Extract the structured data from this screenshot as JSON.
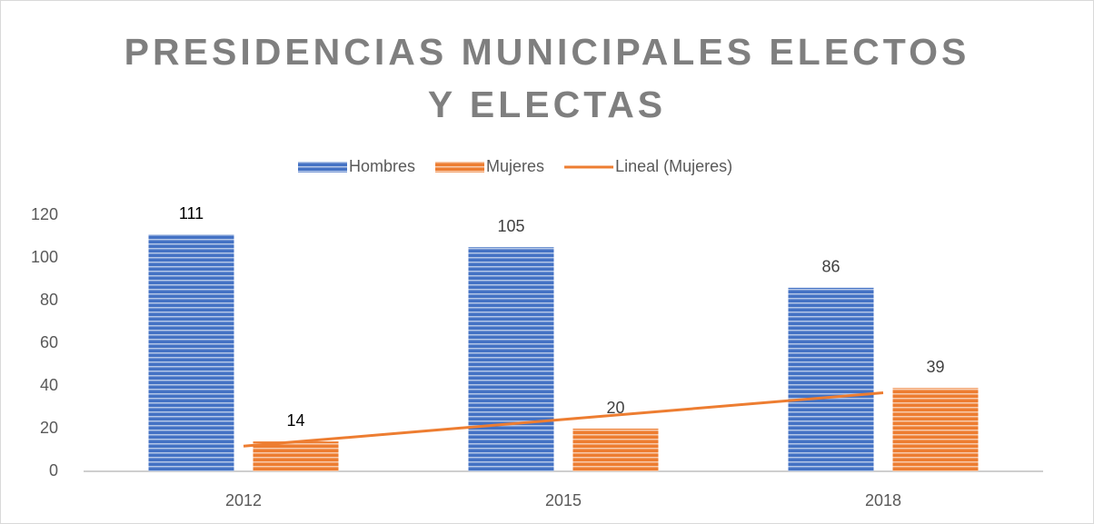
{
  "chart_data": {
    "type": "bar",
    "title": "PRESIDENCIAS MUNICIPALES ELECTOS Y ELECTAS",
    "categories": [
      "2012",
      "2015",
      "2018"
    ],
    "series": [
      {
        "name": "Hombres",
        "color": "#4472c4",
        "type": "bar",
        "values": [
          111,
          105,
          86
        ]
      },
      {
        "name": "Mujeres",
        "color": "#ed7d31",
        "type": "bar",
        "values": [
          14,
          20,
          39
        ]
      },
      {
        "name": "Lineal (Mujeres)",
        "color": "#ed7d31",
        "type": "line",
        "values": [
          11.8,
          24.3,
          36.8
        ]
      }
    ],
    "ylim": [
      0,
      120
    ],
    "yticks": [
      0,
      20,
      40,
      60,
      80,
      100,
      120
    ],
    "grid": false,
    "legend": "top"
  }
}
